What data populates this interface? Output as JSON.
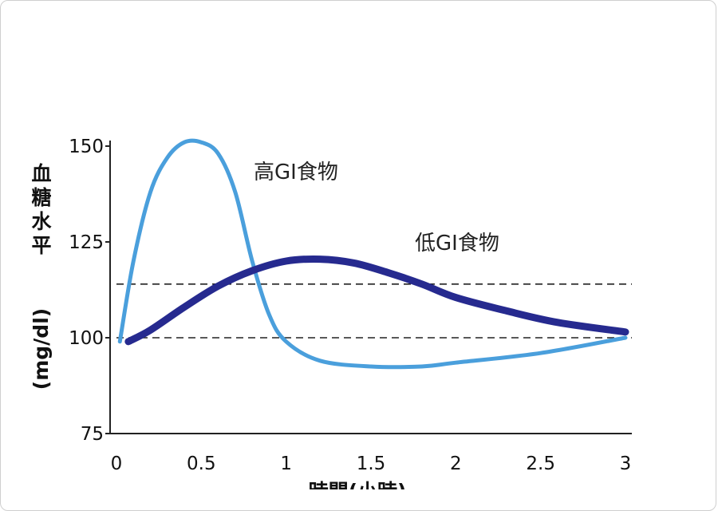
{
  "chart_data": {
    "type": "line",
    "ylabel": "血糖水平 (mg/dl)",
    "ylabel_chars": [
      "血",
      "糖",
      "水",
      "平"
    ],
    "ylabel_unit": "(mg/dl)",
    "xlabel": "時間(小時)",
    "xlim": [
      0,
      3
    ],
    "ylim": [
      75,
      150
    ],
    "x_ticks": [
      0,
      0.5,
      1,
      1.5,
      2,
      2.5,
      3
    ],
    "x_tick_labels": [
      "0",
      "0.5",
      "1",
      "1.5",
      "2",
      "2.5",
      "3"
    ],
    "y_ticks": [
      75,
      100,
      125,
      150
    ],
    "y_tick_labels": [
      "75",
      "100",
      "125",
      "150"
    ],
    "reference_lines": [
      100,
      114
    ],
    "grid": false,
    "colors": {
      "high_gi": "#4a9fdc",
      "low_gi": "#262a8f",
      "axis": "#222222",
      "reference": "#222222"
    },
    "annotations": [
      {
        "text": "高GI食物",
        "series": "high_gi"
      },
      {
        "text": "低GI食物",
        "series": "low_gi"
      }
    ],
    "series": [
      {
        "key": "high_gi",
        "x": [
          0.02,
          0.1,
          0.2,
          0.3,
          0.4,
          0.5,
          0.6,
          0.7,
          0.8,
          0.9,
          1.0,
          1.2,
          1.5,
          1.8,
          2.0,
          2.5,
          3.0
        ],
        "values": [
          99,
          120,
          138,
          147,
          151,
          151,
          148,
          138,
          120,
          106,
          99,
          94,
          92.5,
          92.5,
          93.5,
          96,
          100
        ]
      },
      {
        "key": "low_gi",
        "x": [
          0.07,
          0.2,
          0.4,
          0.6,
          0.8,
          1.0,
          1.2,
          1.4,
          1.6,
          1.8,
          2.0,
          2.3,
          2.6,
          3.0
        ],
        "values": [
          99,
          102,
          108,
          113.5,
          117.5,
          120,
          120.5,
          119.5,
          117,
          114,
          110.5,
          107,
          104,
          101.5
        ]
      }
    ]
  }
}
